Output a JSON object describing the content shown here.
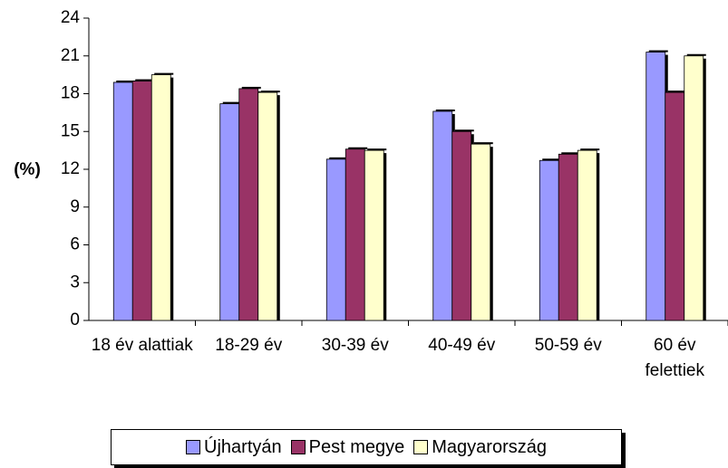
{
  "chart_data": {
    "type": "bar",
    "y_label": "(%)",
    "categories": [
      "18 év alattiak",
      "18-29 év",
      "30-39 év",
      "40-49 év",
      "50-59 év",
      "60 év felettiek"
    ],
    "series": [
      {
        "name": "Újhartyán",
        "color": "#9999ff",
        "values": [
          18.9,
          17.2,
          12.8,
          16.6,
          12.7,
          21.3
        ]
      },
      {
        "name": "Pest megye",
        "color": "#993366",
        "values": [
          19.0,
          18.4,
          13.6,
          15.0,
          13.2,
          18.1
        ]
      },
      {
        "name": "Magyarország",
        "color": "#ffffcc",
        "values": [
          19.5,
          18.1,
          13.5,
          14.0,
          13.5,
          21.0
        ]
      }
    ],
    "ylim": [
      0,
      24
    ],
    "yticks": [
      0,
      3,
      6,
      9,
      12,
      15,
      18,
      21,
      24
    ],
    "grid": false,
    "legend": "bottom"
  }
}
